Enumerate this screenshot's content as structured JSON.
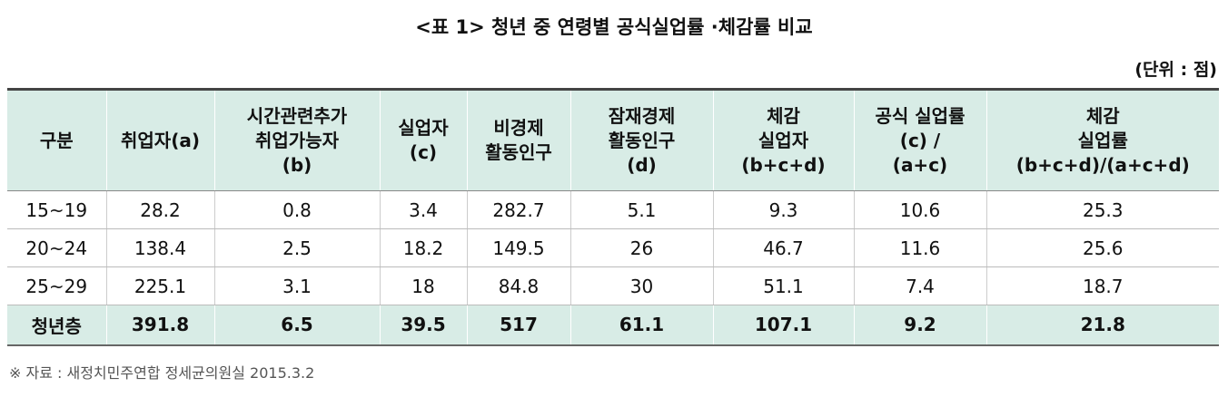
{
  "header": {
    "title": "<표 1> 청년 중 연령별 공식실업률 ·체감률 비교",
    "unit": "(단위 : 점)"
  },
  "table": {
    "columns": [
      [
        "구분"
      ],
      [
        "취업자(a)"
      ],
      [
        "시간관련추가",
        "취업가능자",
        "(b)"
      ],
      [
        "실업자",
        "(c)"
      ],
      [
        "비경제",
        "활동인구"
      ],
      [
        "잠재경제",
        "활동인구",
        "(d)"
      ],
      [
        "체감",
        "실업자",
        "(b+c+d)"
      ],
      [
        "공식 실업률",
        "(c) /",
        "(a+c)"
      ],
      [
        "체감",
        "실업률",
        "(b+c+d)/(a+c+d)"
      ]
    ],
    "rows": [
      [
        "15~19",
        "28.2",
        "0.8",
        "3.4",
        "282.7",
        "5.1",
        "9.3",
        "10.6",
        "25.3"
      ],
      [
        "20~24",
        "138.4",
        "2.5",
        "18.2",
        "149.5",
        "26",
        "46.7",
        "11.6",
        "25.6"
      ],
      [
        "25~29",
        "225.1",
        "3.1",
        "18",
        "84.8",
        "30",
        "51.1",
        "7.4",
        "18.7"
      ],
      [
        "청년층",
        "391.8",
        "6.5",
        "39.5",
        "517",
        "61.1",
        "107.1",
        "9.2",
        "21.8"
      ]
    ]
  },
  "footer": {
    "source": "※ 자료 : 새정치민주연합 정세균의원실 2015.3.2"
  }
}
